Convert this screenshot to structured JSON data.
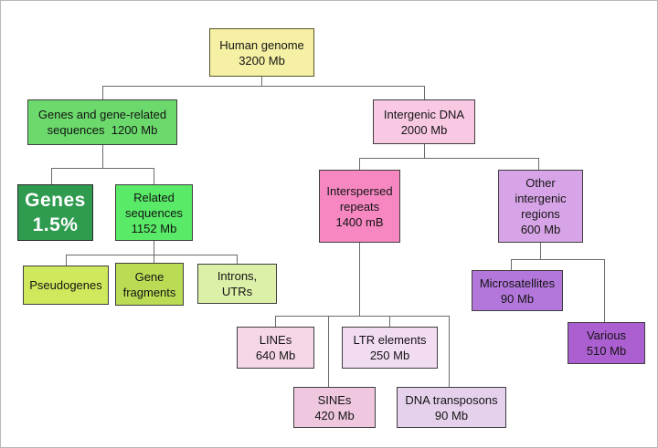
{
  "diagram": {
    "name": "Human genome composition tree",
    "background_color": "#ffffff",
    "connector_color": "#6b6b6b",
    "nodes": [
      {
        "id": "human-genome",
        "lines": [
          "Human genome",
          "3200 Mb"
        ],
        "fill": "#F6F0A4",
        "border": "#55552a",
        "text": "#141414",
        "parent": null
      },
      {
        "id": "genes-related",
        "lines": [
          "Genes and gene-related",
          "sequences  1200 Mb"
        ],
        "fill": "#6BD96B",
        "border": "#3f3f3f",
        "text": "#141414",
        "parent": "human-genome"
      },
      {
        "id": "intergenic-dna",
        "lines": [
          "Intergenic DNA",
          "2000 Mb"
        ],
        "fill": "#F9C9E4",
        "border": "#3f3f3f",
        "text": "#141414",
        "parent": "human-genome"
      },
      {
        "id": "genes",
        "lines": [
          "Genes",
          "1.5%"
        ],
        "fill": "#2E9B4F",
        "border": "#2a2a2a",
        "text": "#ffffff",
        "parent": "genes-related",
        "emphasis": true
      },
      {
        "id": "related-sequences",
        "lines": [
          "Related",
          "sequences",
          "1152 Mb"
        ],
        "fill": "#59EA67",
        "border": "#3f3f3f",
        "text": "#141414",
        "parent": "genes-related"
      },
      {
        "id": "pseudogenes",
        "lines": [
          "Pseudogenes"
        ],
        "fill": "#CEE95C",
        "border": "#3f3f3f",
        "text": "#141414",
        "parent": "related-sequences"
      },
      {
        "id": "gene-fragments",
        "lines": [
          "Gene",
          "fragments"
        ],
        "fill": "#BADC55",
        "border": "#3f3f3f",
        "text": "#141414",
        "parent": "related-sequences"
      },
      {
        "id": "introns-utrs",
        "lines": [
          "Introns,",
          "UTRs"
        ],
        "fill": "#DCF0A8",
        "border": "#3f3f3f",
        "text": "#141414",
        "parent": "related-sequences"
      },
      {
        "id": "interspersed-repeats",
        "lines": [
          "Interspersed",
          "repeats",
          "1400 mB"
        ],
        "fill": "#F687C1",
        "border": "#3f3f3f",
        "text": "#141414",
        "parent": "intergenic-dna"
      },
      {
        "id": "other-intergenic",
        "lines": [
          "Other",
          "intergenic",
          "regions",
          "600 Mb"
        ],
        "fill": "#D7A5E7",
        "border": "#3f3f3f",
        "text": "#141414",
        "parent": "intergenic-dna"
      },
      {
        "id": "microsatellites",
        "lines": [
          "Microsatellites",
          "90 Mb"
        ],
        "fill": "#B377DB",
        "border": "#3f3f3f",
        "text": "#141414",
        "parent": "other-intergenic"
      },
      {
        "id": "various",
        "lines": [
          "Various",
          "510 Mb"
        ],
        "fill": "#AC5FD0",
        "border": "#3f3f3f",
        "text": "#141414",
        "parent": "other-intergenic"
      },
      {
        "id": "lines-repeats",
        "lines": [
          "LINEs",
          "640 Mb"
        ],
        "fill": "#F6D7E8",
        "border": "#3f3f3f",
        "text": "#141414",
        "parent": "interspersed-repeats"
      },
      {
        "id": "ltr-elements",
        "lines": [
          "LTR elements",
          "250 Mb"
        ],
        "fill": "#F2DCF2",
        "border": "#3f3f3f",
        "text": "#141414",
        "parent": "interspersed-repeats"
      },
      {
        "id": "sines",
        "lines": [
          "SINEs",
          "420 Mb"
        ],
        "fill": "#EFC8E0",
        "border": "#3f3f3f",
        "text": "#141414",
        "parent": "interspersed-repeats"
      },
      {
        "id": "dna-transposons",
        "lines": [
          "DNA transposons",
          "90 Mb"
        ],
        "fill": "#E5D1EC",
        "border": "#3f3f3f",
        "text": "#141414",
        "parent": "interspersed-repeats"
      }
    ]
  }
}
